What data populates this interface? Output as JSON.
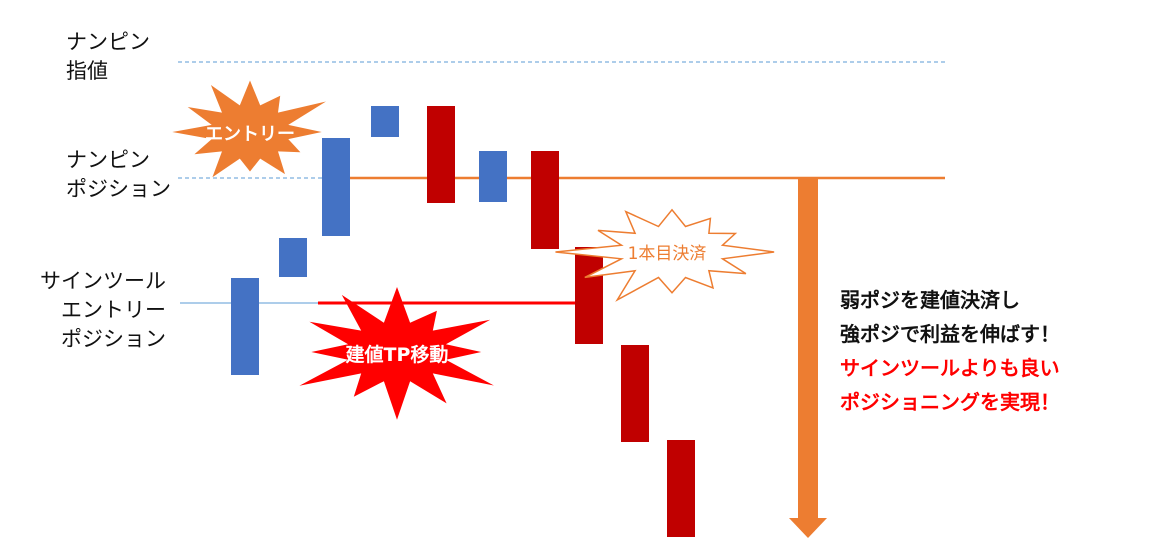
{
  "labels": {
    "nanpin_limit": [
      "ナンピン",
      "指値"
    ],
    "nanpin_position": [
      "ナンピン",
      "ポジション"
    ],
    "signtool_entry": [
      "サインツール",
      "エントリー",
      "ポジション"
    ]
  },
  "bursts": {
    "entry": "エントリー",
    "breakeven_tp": "建値TP移動",
    "first_close": "1本目決済"
  },
  "notes": {
    "black": [
      "弱ポジを建値決済し",
      "強ポジで利益を伸ばす！"
    ],
    "red": [
      "サインツールよりも良い",
      "ポジショニングを実現！"
    ]
  },
  "colors": {
    "bull": "#4472C4",
    "bear": "#C00000",
    "orange": "#ED7D31",
    "red": "#FF0000",
    "dashed": "#5B9BD5"
  }
}
